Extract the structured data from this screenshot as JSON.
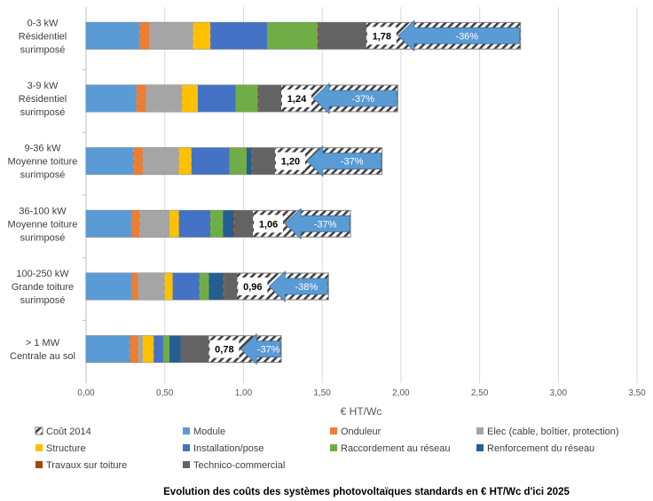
{
  "chart_data": {
    "type": "bar",
    "orientation": "horizontal",
    "stacked": true,
    "title": "Evolution des coûts des systèmes photovoltaïques standards en € HT/Wc d'ici 2025",
    "xlabel": "€ HT/Wc",
    "ylabel": "",
    "xlim": [
      0,
      3.5
    ],
    "xticks": [
      "0,00",
      "0,50",
      "1,00",
      "1,50",
      "2,00",
      "2,50",
      "3,00",
      "3,50"
    ],
    "grid": true,
    "legend_position": "bottom",
    "categories": [
      [
        "0-3 kW",
        "Résidentiel",
        "surimposé"
      ],
      [
        "3-9 kW",
        "Résidentiel",
        "surimposé"
      ],
      [
        "9-36 kW",
        "Moyenne toiture",
        "surimposé"
      ],
      [
        "36-100 kW",
        "Moyenne toiture",
        "surimposé"
      ],
      [
        "100-250 kW",
        "Grande toiture",
        "surimposé"
      ],
      [
        "> 1 MW",
        "Centrale au sol"
      ]
    ],
    "series": [
      {
        "name": "Module",
        "color": "#5B9BD5",
        "values": [
          0.34,
          0.32,
          0.3,
          0.29,
          0.29,
          0.28
        ]
      },
      {
        "name": "Onduleur",
        "color": "#ED7D31",
        "values": [
          0.06,
          0.06,
          0.06,
          0.05,
          0.04,
          0.05
        ]
      },
      {
        "name": "Elec (cable, boîtier, protection)",
        "color": "#A5A5A5",
        "values": [
          0.28,
          0.23,
          0.23,
          0.19,
          0.17,
          0.03
        ]
      },
      {
        "name": "Structure",
        "color": "#FFC000",
        "values": [
          0.11,
          0.1,
          0.08,
          0.06,
          0.05,
          0.07
        ]
      },
      {
        "name": "Installation/pose",
        "color": "#4472C4",
        "values": [
          0.36,
          0.24,
          0.24,
          0.2,
          0.17,
          0.06
        ]
      },
      {
        "name": "Raccordement au réseau",
        "color": "#70AD47",
        "values": [
          0.32,
          0.14,
          0.11,
          0.08,
          0.06,
          0.04
        ]
      },
      {
        "name": "Renforcement du réseau",
        "color": "#255E91",
        "values": [
          0.0,
          0.0,
          0.03,
          0.07,
          0.09,
          0.07
        ]
      },
      {
        "name": "Travaux sur toiture",
        "color": "#9E480E",
        "values": [
          0.005,
          0.005,
          0.005,
          0.005,
          0.005,
          0.0
        ]
      },
      {
        "name": "Technico-commercial",
        "color": "#636363",
        "values": [
          0.305,
          0.145,
          0.145,
          0.115,
          0.085,
          0.18
        ]
      }
    ],
    "cost_2014": {
      "name": "Coût 2014",
      "values": [
        2.76,
        1.98,
        1.88,
        1.68,
        1.54,
        1.24
      ]
    },
    "totals_labels": [
      "1,78",
      "1,24",
      "1,20",
      "1,06",
      "0,96",
      "0,78"
    ],
    "reduction_labels": [
      "-36%",
      "-37%",
      "-37%",
      "-37%",
      "-38%",
      "-37%"
    ],
    "arrow_color": "#5B9BD5"
  }
}
